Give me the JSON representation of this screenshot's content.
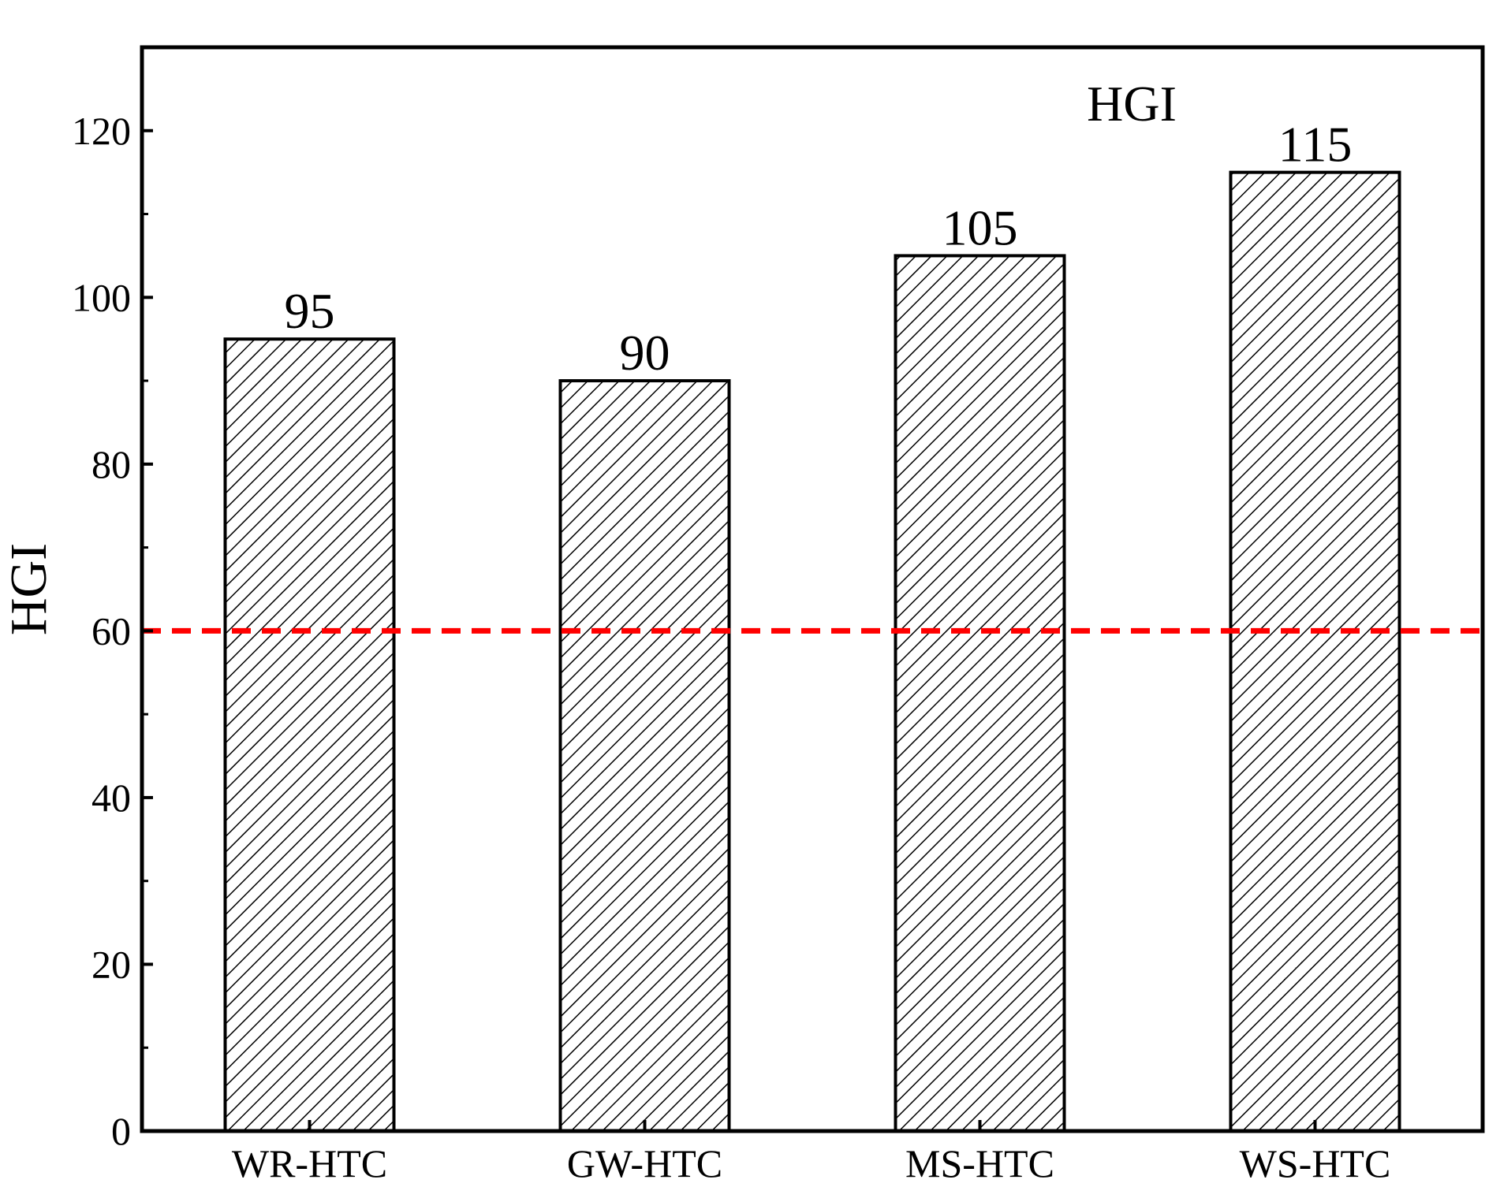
{
  "chart_data": {
    "type": "bar",
    "categories": [
      "WR-HTC",
      "GW-HTC",
      "MS-HTC",
      "WS-HTC"
    ],
    "values": [
      95,
      90,
      105,
      115
    ],
    "value_labels": [
      "95",
      "90",
      "105",
      "115"
    ],
    "title": "",
    "panel_label": "HGI",
    "xlabel": "",
    "ylabel": "HGI",
    "ylim": [
      0,
      130
    ],
    "yticks": [
      0,
      20,
      40,
      60,
      80,
      100,
      120
    ],
    "bar_fill": "hatched",
    "reference_line": {
      "y": 60,
      "style": "dashed",
      "color": "#ff0000"
    },
    "grid": false,
    "legend": "none"
  }
}
